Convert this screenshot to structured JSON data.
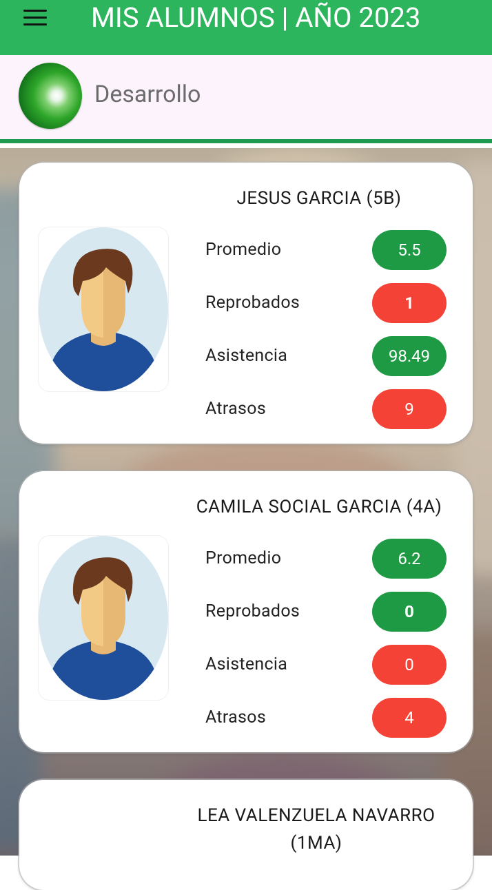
{
  "appbar": {
    "title": "MIS ALUMNOS | AÑO 2023",
    "menu_icon": "hamburger-menu-icon",
    "color": "#2db55d"
  },
  "subheader": {
    "title": "Desarrollo",
    "logo_icon": "green-orb-logo-icon",
    "rule_color": "#1e9b4f"
  },
  "colors": {
    "ok": "#1e9a45",
    "alert": "#f44336"
  },
  "students": [
    {
      "name": "JESUS GARCIA (5B)",
      "avatar_icon": "student-avatar-icon",
      "metrics": [
        {
          "label": "Promedio",
          "value": "5.5",
          "status": "ok"
        },
        {
          "label": "Reprobados",
          "value": "1",
          "status": "alert"
        },
        {
          "label": "Asistencia",
          "value": "98.49",
          "status": "ok"
        },
        {
          "label": "Atrasos",
          "value": "9",
          "status": "alert"
        }
      ]
    },
    {
      "name": "CAMILA SOCIAL GARCIA (4A)",
      "avatar_icon": "student-avatar-icon",
      "metrics": [
        {
          "label": "Promedio",
          "value": "6.2",
          "status": "ok"
        },
        {
          "label": "Reprobados",
          "value": "0",
          "status": "ok"
        },
        {
          "label": "Asistencia",
          "value": "0",
          "status": "alert"
        },
        {
          "label": "Atrasos",
          "value": "4",
          "status": "alert"
        }
      ]
    },
    {
      "name": "LEA VALENZUELA NAVARRO (1MA)"
    }
  ]
}
